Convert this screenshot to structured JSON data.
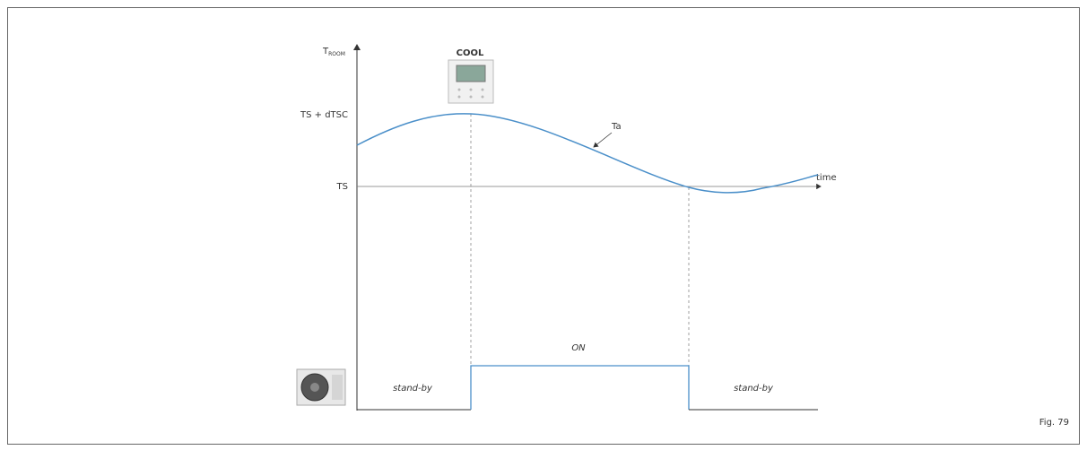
{
  "axis": {
    "y_label": "T",
    "y_label_sub": "ROOM",
    "x_label": "time"
  },
  "levels": [
    "TS + dTSC",
    "TS"
  ],
  "curve_label": "Ta",
  "remote_label": "COOL",
  "states": [
    "stand-by",
    "ON",
    "stand-by"
  ],
  "figure": "Fig. 79"
}
